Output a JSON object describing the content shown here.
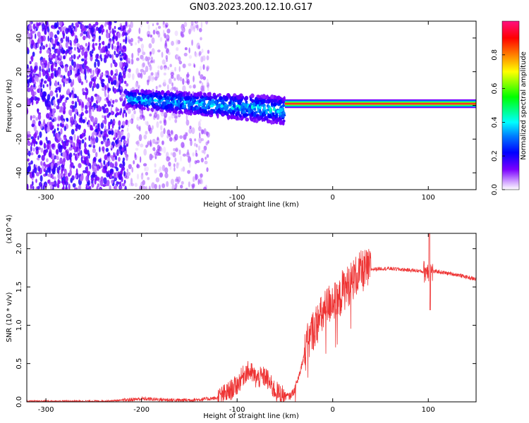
{
  "title": "GN03.2023.200.12.10.G17",
  "chart_data": [
    {
      "type": "heatmap",
      "xlabel": "Height of straight line (km)",
      "ylabel": "Frequency (Hz)",
      "xlim": [
        -320,
        150
      ],
      "ylim": [
        -50,
        50
      ],
      "xticks": [
        -300,
        -200,
        -100,
        0,
        100
      ],
      "xtick_labels": [
        "-300",
        "-200",
        "-100",
        "0",
        "100"
      ],
      "yticks": [
        -40,
        -20,
        0,
        20,
        40
      ],
      "ytick_labels": [
        "-40",
        "-20",
        "0",
        "20",
        "40"
      ],
      "colorbar": {
        "label": "Normalized spectral amplitude",
        "range": [
          0,
          1
        ],
        "ticks": [
          0.0,
          0.2,
          0.4,
          0.6,
          0.8
        ],
        "tick_labels": [
          "0.0",
          "0.2",
          "0.4",
          "0.6",
          "0.8"
        ],
        "colormap": [
          "#ffffff",
          "#b040ff",
          "#6000ff",
          "#0000ff",
          "#00ffff",
          "#00ff00",
          "#ffff00",
          "#ff8000",
          "#ff0000",
          "#ff0080"
        ]
      },
      "features": [
        {
          "x_range": [
            -320,
            -215
          ],
          "freq_range": [
            -50,
            50
          ],
          "amplitude": [
            0.05,
            0.2
          ]
        },
        {
          "x_range": [
            -215,
            -130
          ],
          "freq_range": [
            -50,
            50
          ],
          "amplitude": [
            0.02,
            0.12
          ]
        },
        {
          "x_range": [
            -215,
            -50
          ],
          "center_freq": [
            4,
            -3
          ],
          "half_width": [
            5,
            8
          ],
          "amplitude": [
            0.1,
            0.45
          ]
        },
        {
          "x_range": [
            -50,
            150
          ],
          "center_freq": [
            1,
            1
          ],
          "half_width": [
            2,
            2
          ],
          "amplitude": [
            0.5,
            0.95
          ]
        }
      ],
      "grid": false
    },
    {
      "type": "line",
      "xlabel": "Height of straight line (km)",
      "ylabel": "SNR (10 * v/v)",
      "y_scale_label": "(x10^4)",
      "xlim": [
        -320,
        150
      ],
      "ylim": [
        0,
        2.2
      ],
      "xticks": [
        -300,
        -200,
        -100,
        0,
        100
      ],
      "xtick_labels": [
        "-300",
        "-200",
        "-100",
        "0",
        "100"
      ],
      "yticks": [
        0.0,
        0.5,
        1.0,
        1.5,
        2.0
      ],
      "ytick_labels": [
        "0.0",
        "0.5",
        "1.0",
        "1.5",
        "2.0"
      ],
      "color": "#ee3333",
      "series": [
        {
          "x": [
            -320,
            -300,
            -280,
            -260,
            -240,
            -220,
            -200,
            -180,
            -160,
            -140,
            -120,
            -110,
            -100,
            -95,
            -90,
            -85,
            -80,
            -75,
            -70,
            -65,
            -60,
            -55,
            -50,
            -45,
            -40,
            -35,
            -30,
            -25,
            -20,
            -15,
            -10,
            -5,
            0,
            5,
            10,
            15,
            20,
            25,
            30,
            35,
            40,
            50,
            60,
            70,
            80,
            90,
            95,
            100,
            105,
            110,
            120,
            130,
            140,
            150
          ],
          "values": [
            0.01,
            0.01,
            0.01,
            0.01,
            0.01,
            0.02,
            0.04,
            0.03,
            0.02,
            0.03,
            0.05,
            0.12,
            0.22,
            0.32,
            0.4,
            0.38,
            0.3,
            0.32,
            0.33,
            0.22,
            0.14,
            0.1,
            0.08,
            0.07,
            0.15,
            0.35,
            0.6,
            0.8,
            0.95,
            1.05,
            1.15,
            1.25,
            1.35,
            1.25,
            1.45,
            1.5,
            1.58,
            1.65,
            1.7,
            1.72,
            1.73,
            1.74,
            1.74,
            1.73,
            1.72,
            1.71,
            1.7,
            1.72,
            1.7,
            1.7,
            1.68,
            1.66,
            1.63,
            1.6
          ]
        }
      ],
      "grid": false
    }
  ]
}
